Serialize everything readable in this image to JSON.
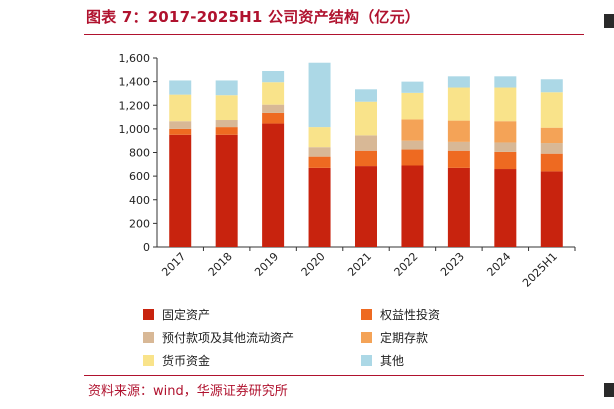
{
  "title": "图表 7：2017-2025H1 公司资产结构（亿元）",
  "source": "资料来源：wind，华源证券研究所",
  "colors": {
    "固定资产": "#c8230e",
    "权益性投资": "#ee6a21",
    "预付款项及其他流动资产": "#d8b896",
    "定期存款": "#f4a357",
    "货币资金": "#f9e38a",
    "其他": "#acd8e6",
    "accent": "#b0122e"
  },
  "chart_data": {
    "type": "bar",
    "stacked": true,
    "categories": [
      "2017",
      "2018",
      "2019",
      "2020",
      "2021",
      "2022",
      "2023",
      "2024",
      "2025H1"
    ],
    "series": [
      {
        "name": "固定资产",
        "values": [
          950,
          950,
          1045,
          670,
          685,
          690,
          670,
          660,
          640
        ]
      },
      {
        "name": "权益性投资",
        "values": [
          50,
          65,
          90,
          95,
          130,
          135,
          145,
          145,
          150
        ]
      },
      {
        "name": "预付款项及其他流动资产",
        "values": [
          65,
          60,
          70,
          80,
          130,
          75,
          75,
          80,
          90
        ]
      },
      {
        "name": "定期存款",
        "values": [
          0,
          0,
          0,
          0,
          0,
          180,
          180,
          180,
          130
        ]
      },
      {
        "name": "货币资金",
        "values": [
          225,
          210,
          190,
          170,
          285,
          225,
          280,
          285,
          300
        ]
      },
      {
        "name": "其他",
        "values": [
          120,
          125,
          95,
          545,
          105,
          95,
          95,
          95,
          110
        ]
      }
    ],
    "ylim": [
      0,
      1600
    ],
    "yticks": [
      0,
      200,
      400,
      600,
      800,
      1000,
      1200,
      1400,
      1600
    ],
    "ytick_labels": [
      "0",
      "200",
      "400",
      "600",
      "800",
      "1,000",
      "1,200",
      "1,400",
      "1,600"
    ],
    "xlabel": "",
    "ylabel": "",
    "grid": false,
    "legend_position": "bottom"
  },
  "legend": [
    {
      "label": "固定资产",
      "key": "固定资产"
    },
    {
      "label": "权益性投资",
      "key": "权益性投资"
    },
    {
      "label": "预付款项及其他流动资产",
      "key": "预付款项及其他流动资产"
    },
    {
      "label": "定期存款",
      "key": "定期存款"
    },
    {
      "label": "货币资金",
      "key": "货币资金"
    },
    {
      "label": "其他",
      "key": "其他"
    }
  ]
}
